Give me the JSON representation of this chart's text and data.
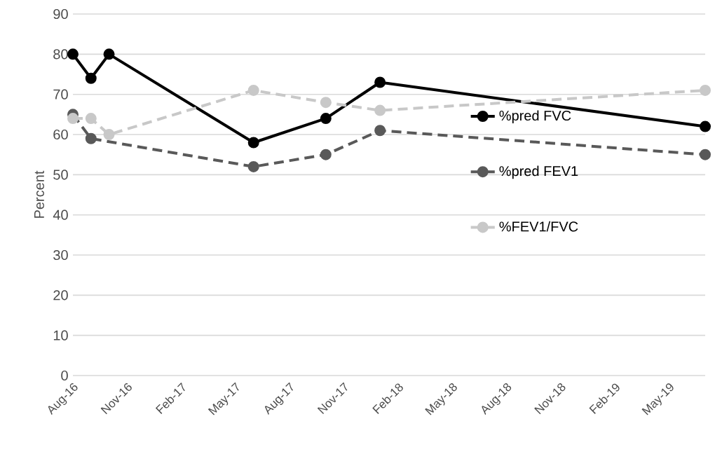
{
  "chart_data": {
    "type": "line",
    "ylabel": "Percent",
    "x": [
      "2016-08",
      "2016-09",
      "2016-10",
      "2017-06",
      "2017-10",
      "2018-01",
      "2019-07"
    ],
    "series": [
      {
        "name": "%pred FVC",
        "color": "#000000",
        "line_style": "solid",
        "values": [
          80,
          74,
          80,
          58,
          64,
          73,
          62
        ]
      },
      {
        "name": "%pred FEV1",
        "color": "#595959",
        "line_style": "dashed",
        "values": [
          65,
          59,
          null,
          52,
          55,
          61,
          55
        ]
      },
      {
        "name": "%FEV1/FVC",
        "color": "#c8c8c8",
        "line_style": "dashed",
        "values": [
          64,
          64,
          60,
          71,
          68,
          66,
          71
        ]
      }
    ],
    "xlim": [
      "2016-08",
      "2019-07"
    ],
    "xticks": [
      {
        "value": "2016-08",
        "label": "Aug-16"
      },
      {
        "value": "2016-11",
        "label": "Nov-16"
      },
      {
        "value": "2017-02",
        "label": "Feb-17"
      },
      {
        "value": "2017-05",
        "label": "May-17"
      },
      {
        "value": "2017-08",
        "label": "Aug-17"
      },
      {
        "value": "2017-11",
        "label": "Nov-17"
      },
      {
        "value": "2018-02",
        "label": "Feb-18"
      },
      {
        "value": "2018-05",
        "label": "May-18"
      },
      {
        "value": "2018-08",
        "label": "Aug-18"
      },
      {
        "value": "2018-11",
        "label": "Nov-18"
      },
      {
        "value": "2019-02",
        "label": "Feb-19"
      },
      {
        "value": "2019-05",
        "label": "May-19"
      }
    ],
    "ylim": [
      0,
      90
    ],
    "yticks": [
      0,
      10,
      20,
      30,
      40,
      50,
      60,
      70,
      80,
      90
    ],
    "grid": "y",
    "legend": "right",
    "marker": "circle"
  }
}
